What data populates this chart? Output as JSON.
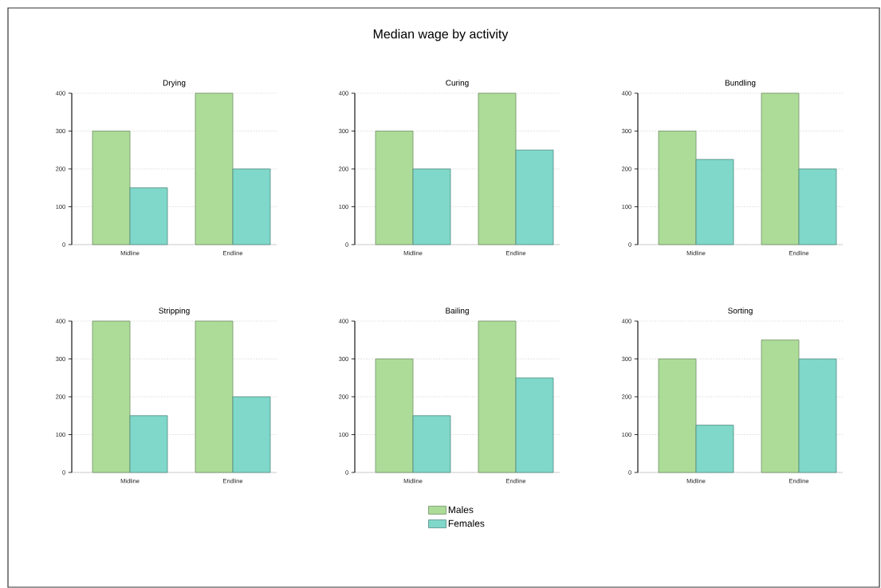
{
  "chart_data": [
    {
      "type": "bar",
      "title": "Drying",
      "annotations": [
        "Median wage by activity"
      ],
      "categories": [
        "Midline",
        "Endline"
      ],
      "series": [
        {
          "color": "#addc99",
          "values": [
            300,
            400
          ]
        },
        {
          "color": "#7fd8c9",
          "values": [
            150,
            200
          ]
        }
      ],
      "ylim": [
        0,
        400
      ],
      "yticks": [
        0,
        100,
        200,
        300,
        400
      ],
      "grid": "y"
    },
    {
      "type": "bar",
      "title": "Curing",
      "categories": [
        "Midline",
        "Endline"
      ],
      "series": [
        {
          "color": "#addc99",
          "values": [
            300,
            400
          ]
        },
        {
          "color": "#7fd8c9",
          "values": [
            200,
            250
          ]
        }
      ],
      "ylim": [
        0,
        400
      ],
      "yticks": [
        0,
        100,
        200,
        300,
        400
      ],
      "grid": "y"
    },
    {
      "type": "bar",
      "title": "Bundling",
      "categories": [
        "Midline",
        "Endline"
      ],
      "series": [
        {
          "color": "#addc99",
          "values": [
            300,
            400
          ]
        },
        {
          "color": "#7fd8c9",
          "values": [
            225,
            200
          ]
        }
      ],
      "ylim": [
        0,
        400
      ],
      "yticks": [
        0,
        100,
        200,
        300,
        400
      ],
      "grid": "y"
    },
    {
      "type": "bar",
      "title": "Stripping",
      "categories": [
        "Midline",
        "Endline"
      ],
      "series": [
        {
          "color": "#addc99",
          "values": [
            400,
            400
          ]
        },
        {
          "color": "#7fd8c9",
          "values": [
            150,
            200
          ]
        }
      ],
      "ylim": [
        0,
        400
      ],
      "yticks": [
        0,
        100,
        200,
        300,
        400
      ],
      "grid": "y"
    },
    {
      "type": "bar",
      "title": "Bailing",
      "categories": [
        "Midline",
        "Endline"
      ],
      "series": [
        {
          "name": "Males",
          "color": "#addc99",
          "values": [
            300,
            400
          ]
        },
        {
          "name": "Females",
          "color": "#7fd8c9",
          "values": [
            150,
            250
          ]
        }
      ],
      "ylim": [
        0,
        400
      ],
      "yticks": [
        0,
        100,
        200,
        300,
        400
      ],
      "grid": "y",
      "legend": "bottom"
    },
    {
      "type": "bar",
      "title": "Sorting",
      "categories": [
        "Midline",
        "Endline"
      ],
      "series": [
        {
          "color": "#addc99",
          "values": [
            300,
            350
          ]
        },
        {
          "color": "#7fd8c9",
          "values": [
            125,
            300
          ]
        }
      ],
      "ylim": [
        0,
        400
      ],
      "yticks": [
        0,
        100,
        200,
        300,
        400
      ],
      "grid": "y"
    }
  ]
}
